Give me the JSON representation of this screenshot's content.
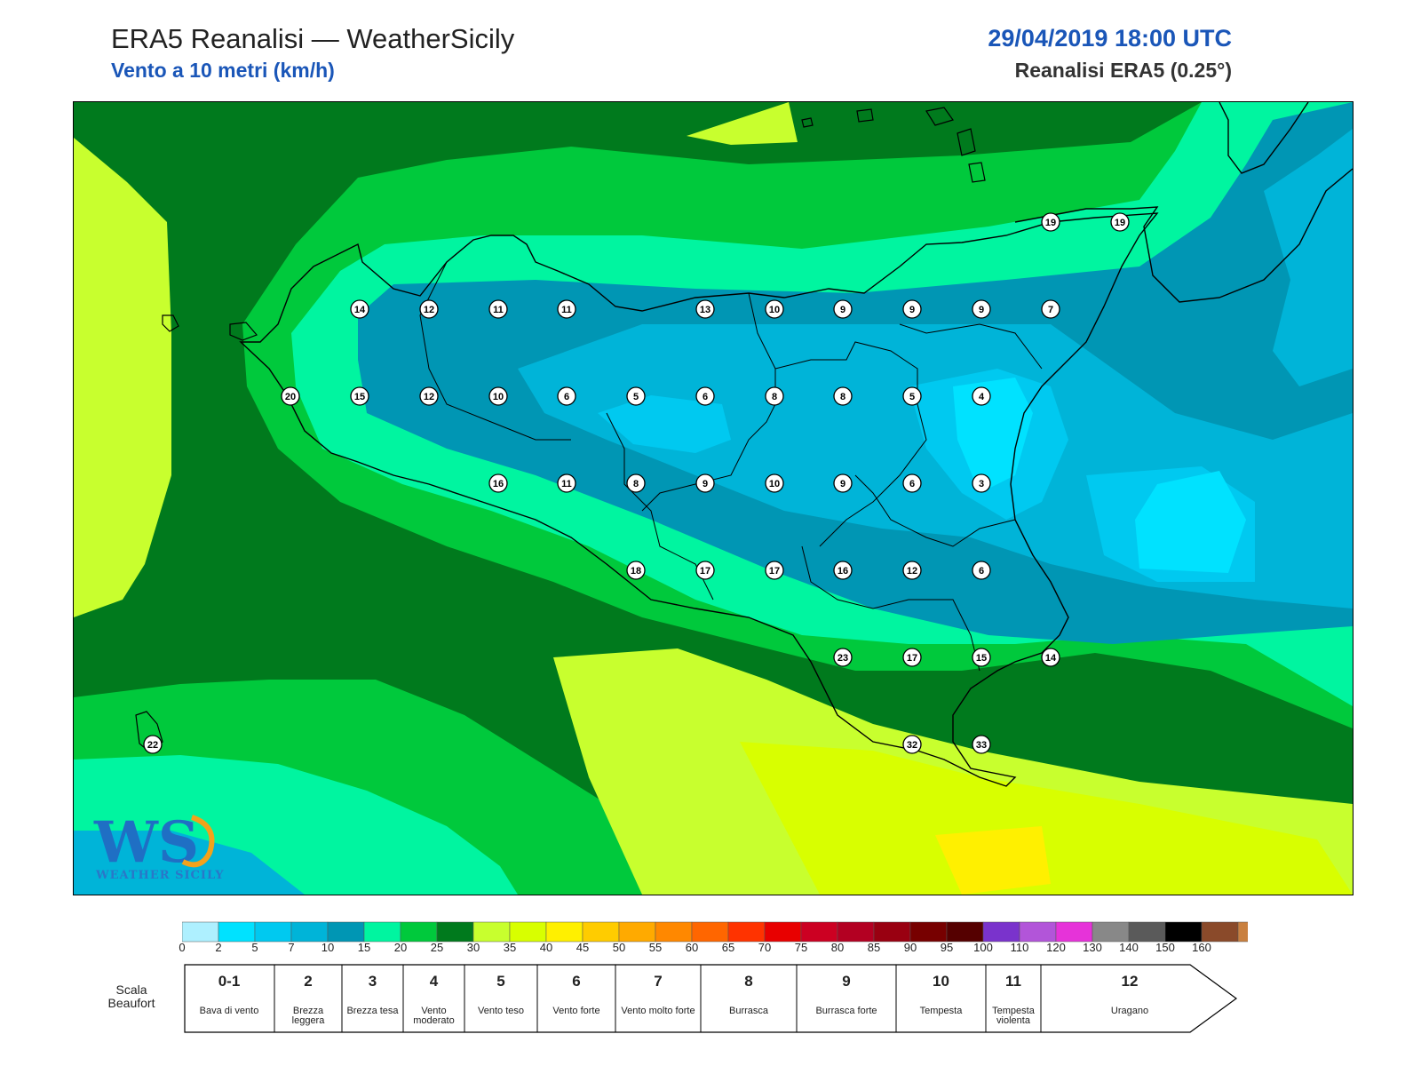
{
  "header": {
    "title": "ERA5 Reanalisi — WeatherSicily",
    "subtitle": "Vento a 10 metri (km/h)",
    "datetime": "29/04/2019 18:00 UTC",
    "source": "Reanalisi ERA5 (0.25°)"
  },
  "colors": {
    "accent": "#1a56b8",
    "scale": [
      "#aef0ff",
      "#00e2ff",
      "#00c9f0",
      "#00b4d8",
      "#0096b4",
      "#00f5a0",
      "#00c93c",
      "#007a1d",
      "#c8ff2e",
      "#d8ff00",
      "#fff000",
      "#ffcc00",
      "#ffaa00",
      "#ff8800",
      "#ff6600",
      "#ff3300",
      "#e80000",
      "#cc0022",
      "#b30022",
      "#990011",
      "#770000",
      "#550000",
      "#7a33cc",
      "#b255d9",
      "#e633d9",
      "#888888",
      "#5a5a5a",
      "#000000",
      "#8a4a2a",
      "#c98040"
    ]
  },
  "colorbar": {
    "ticks": [
      "0",
      "2",
      "5",
      "7",
      "10",
      "15",
      "20",
      "25",
      "30",
      "35",
      "40",
      "45",
      "50",
      "55",
      "60",
      "65",
      "70",
      "75",
      "80",
      "85",
      "90",
      "95",
      "100",
      "110",
      "120",
      "130",
      "140",
      "150",
      "160"
    ]
  },
  "beaufort": {
    "label": "Scala Beaufort",
    "cells": [
      {
        "num": "0-1",
        "name": "Bava di vento"
      },
      {
        "num": "2",
        "name": "Brezza leggera"
      },
      {
        "num": "3",
        "name": "Brezza tesa"
      },
      {
        "num": "4",
        "name": "Vento moderato"
      },
      {
        "num": "5",
        "name": "Vento teso"
      },
      {
        "num": "6",
        "name": "Vento forte"
      },
      {
        "num": "7",
        "name": "Vento molto forte"
      },
      {
        "num": "8",
        "name": "Burrasca"
      },
      {
        "num": "9",
        "name": "Burrasca forte"
      },
      {
        "num": "10",
        "name": "Tempesta"
      },
      {
        "num": "11",
        "name": "Tempesta violenta"
      },
      {
        "num": "12",
        "name": "Uragano"
      }
    ]
  },
  "stations": [
    {
      "value": "19"
    },
    {
      "value": "19"
    },
    {
      "value": "14"
    },
    {
      "value": "12"
    },
    {
      "value": "11"
    },
    {
      "value": "11"
    },
    {
      "value": "13"
    },
    {
      "value": "10"
    },
    {
      "value": "9"
    },
    {
      "value": "9"
    },
    {
      "value": "9"
    },
    {
      "value": "7"
    },
    {
      "value": "20"
    },
    {
      "value": "15"
    },
    {
      "value": "12"
    },
    {
      "value": "10"
    },
    {
      "value": "6"
    },
    {
      "value": "5"
    },
    {
      "value": "6"
    },
    {
      "value": "8"
    },
    {
      "value": "8"
    },
    {
      "value": "5"
    },
    {
      "value": "4"
    },
    {
      "value": "16"
    },
    {
      "value": "11"
    },
    {
      "value": "8"
    },
    {
      "value": "9"
    },
    {
      "value": "10"
    },
    {
      "value": "9"
    },
    {
      "value": "6"
    },
    {
      "value": "3"
    },
    {
      "value": "18"
    },
    {
      "value": "17"
    },
    {
      "value": "17"
    },
    {
      "value": "16"
    },
    {
      "value": "12"
    },
    {
      "value": "6"
    },
    {
      "value": "23"
    },
    {
      "value": "17"
    },
    {
      "value": "15"
    },
    {
      "value": "14"
    },
    {
      "value": "22"
    },
    {
      "value": "32"
    },
    {
      "value": "33"
    }
  ],
  "logo": {
    "text": "WEATHER SICILY",
    "mark": "WS"
  }
}
